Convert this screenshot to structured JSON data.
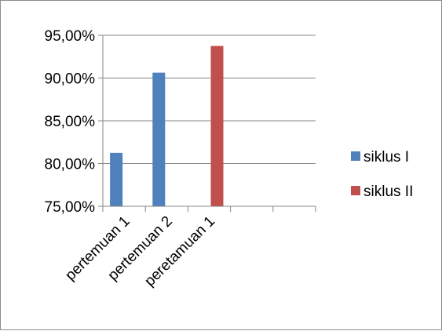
{
  "chart_data": {
    "type": "bar",
    "title": "",
    "xlabel": "",
    "ylabel": "",
    "categories": [
      "pertemuan 1",
      "pertemuan 2",
      "peretamuan 1",
      "",
      ""
    ],
    "ylim": [
      0.75,
      0.95
    ],
    "yticks": [
      0.75,
      0.8,
      0.85,
      0.9,
      0.95
    ],
    "ytick_labels": [
      "75,00%",
      "80,00%",
      "85,00%",
      "90,00%",
      "95,00%"
    ],
    "grid": true,
    "legend": "right",
    "series": [
      {
        "name": "siklus I",
        "color": "#4f81bd",
        "values": [
          0.8125,
          0.9063,
          null,
          null,
          null
        ]
      },
      {
        "name": "siklus II",
        "color": "#c0504d",
        "values": [
          null,
          null,
          0.9375,
          null,
          null
        ]
      }
    ]
  }
}
